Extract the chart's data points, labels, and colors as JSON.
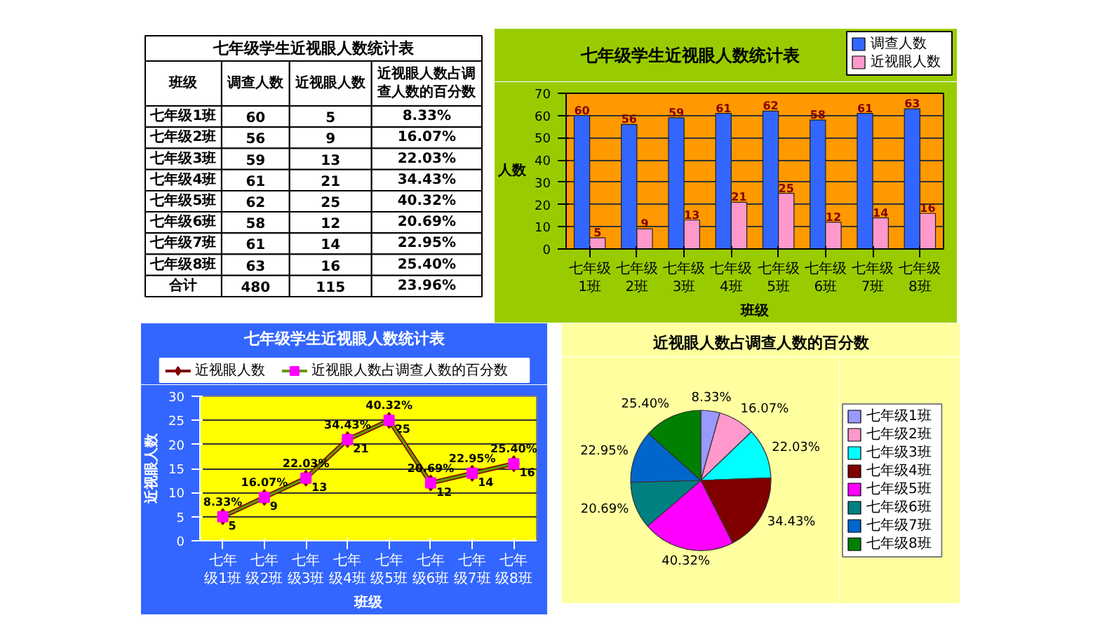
{
  "chart_data": [
    {
      "type": "other",
      "title": "七年级学生近视眼人数统计表",
      "xlabel": "班级",
      "data_labels": true,
      "categories": [
        "七年级1班",
        "七年级2班",
        "七年级3班",
        "七年级4班",
        "七年级5班",
        "七年级6班",
        "七年级7班",
        "七年级8班",
        "合计"
      ],
      "series": [
        {
          "name": "调查人数",
          "values": [
            60,
            56,
            59,
            61,
            62,
            58,
            61,
            63,
            480
          ]
        },
        {
          "name": "近视眼人数",
          "values": [
            5,
            9,
            13,
            21,
            25,
            12,
            14,
            16,
            115
          ]
        },
        {
          "name": "近视眼人数占调查人数的百分数",
          "values": [
            8.33,
            16.07,
            22.03,
            34.43,
            40.32,
            20.69,
            22.95,
            25.4,
            23.96
          ],
          "value_labels": [
            "8.33%",
            "16.07%",
            "22.03%",
            "34.43%",
            "40.32%",
            "20.69%",
            "22.95%",
            "25.40%",
            "23.96%"
          ]
        }
      ]
    },
    {
      "type": "bar",
      "title": "七年级学生近视眼人数统计表",
      "xlabel": "班级",
      "ylabel": "人数",
      "categories": [
        "七年级1班",
        "七年级2班",
        "七年级3班",
        "七年级4班",
        "七年级5班",
        "七年级6班",
        "七年级7班",
        "七年级8班"
      ],
      "series": [
        {
          "name": "调查人数",
          "color": "#3366ff",
          "values": [
            60,
            56,
            59,
            61,
            62,
            58,
            61,
            63
          ]
        },
        {
          "name": "近视眼人数",
          "color": "#ff99cc",
          "values": [
            5,
            9,
            13,
            21,
            25,
            12,
            14,
            16
          ]
        }
      ],
      "ylim": [
        0,
        70
      ],
      "yticks": [
        0,
        10,
        20,
        30,
        40,
        50,
        60,
        70
      ],
      "grid": "y",
      "legend": "top right",
      "data_labels": true
    },
    {
      "type": "line",
      "title": "七年级学生近视眼人数统计表",
      "xlabel": "班级",
      "ylabel": "近视眼人数",
      "categories": [
        "七年级1班",
        "七年级2班",
        "七年级3班",
        "七年级4班",
        "七年级5班",
        "七年级6班",
        "七年级7班",
        "七年级8班"
      ],
      "series": [
        {
          "name": "近视眼人数",
          "color": "#800000",
          "marker": "diamond",
          "values": [
            5,
            9,
            13,
            21,
            25,
            12,
            14,
            16
          ],
          "value_labels": [
            "5",
            "9",
            "13",
            "21",
            "25",
            "12",
            "14",
            "16"
          ]
        },
        {
          "name": "近视眼人数占调查人数的百分数",
          "color": "#669900",
          "marker": "square",
          "colors": [
            "#ff00ff",
            "#ff00ff",
            "#ff00ff",
            "#ff00ff",
            "#ff00ff",
            "#ff00ff",
            "#ff00ff",
            "#ff00ff"
          ],
          "values": [
            5,
            9,
            13,
            21,
            25,
            12,
            14,
            16
          ]
        }
      ],
      "ylim": [
        0,
        30
      ],
      "yticks": [
        0,
        5,
        10,
        15,
        20,
        25,
        30
      ],
      "grid": "y",
      "legend": "top",
      "annotations": [
        {
          "text": "8.33%",
          "x": "七年级1班",
          "y": 5
        },
        {
          "text": "16.07%",
          "x": "七年级2班",
          "y": 9
        },
        {
          "text": "22.03%",
          "x": "七年级3班",
          "y": 13
        },
        {
          "text": "34.43%",
          "x": "七年级4班",
          "y": 21
        },
        {
          "text": "40.32%",
          "x": "七年级5班",
          "y": 25
        },
        {
          "text": "20.69%",
          "x": "七年级6班",
          "y": 12
        },
        {
          "text": "22.95%",
          "x": "七年级7班",
          "y": 14
        },
        {
          "text": "25.40%",
          "x": "七年级8班",
          "y": 16
        }
      ]
    },
    {
      "type": "pie",
      "title": "近视眼人数占调查人数的百分数",
      "categories": [
        "七年级1班",
        "七年级2班",
        "七年级3班",
        "七年级4班",
        "七年级5班",
        "七年级6班",
        "七年级7班",
        "七年级8班"
      ],
      "values": [
        8.33,
        16.07,
        22.03,
        34.43,
        40.32,
        20.69,
        22.95,
        25.4
      ],
      "colors": [
        "#9999ff",
        "#ff99cc",
        "#00ffff",
        "#800000",
        "#ff00ff",
        "#008080",
        "#0066cc",
        "#008000"
      ],
      "value_labels": [
        "8.33%",
        "16.07%",
        "22.03%",
        "34.43%",
        "40.32%",
        "20.69%",
        "22.95%",
        "25.40%"
      ],
      "legend": "right"
    }
  ]
}
